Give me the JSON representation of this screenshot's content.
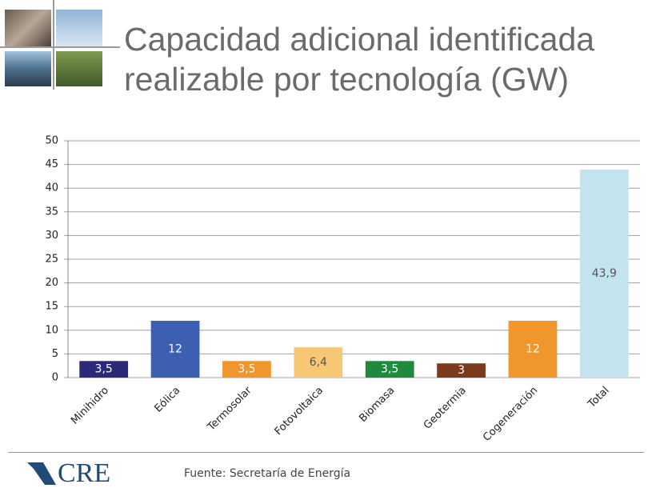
{
  "title": "Capacidad adicional identificada realizable por tecnología (GW)",
  "footer": {
    "logo": "CRE",
    "source": "Fuente: Secretaría de Energía"
  },
  "chart_data": {
    "type": "bar",
    "categories": [
      "Minihidro",
      "Eólica",
      "Termosolar",
      "Fotovoltaica",
      "Biomasa",
      "Geotermia",
      "Cogeneración",
      "Total"
    ],
    "values": [
      3.5,
      12,
      3.5,
      6.4,
      3.5,
      3,
      12,
      43.9
    ],
    "value_labels": [
      "3,5",
      "12",
      "3,5",
      "6,4",
      "3,5",
      "3",
      "12",
      "43,9"
    ],
    "colors": [
      "#2b2a78",
      "#3d5fb2",
      "#f0962c",
      "#f8c774",
      "#1f8a3d",
      "#7b3b1b",
      "#f0962c",
      "#c3e4ef"
    ],
    "ylim": [
      0,
      50
    ],
    "yticks": [
      0,
      5,
      10,
      15,
      20,
      25,
      30,
      35,
      40,
      45,
      50
    ],
    "grid": true
  }
}
